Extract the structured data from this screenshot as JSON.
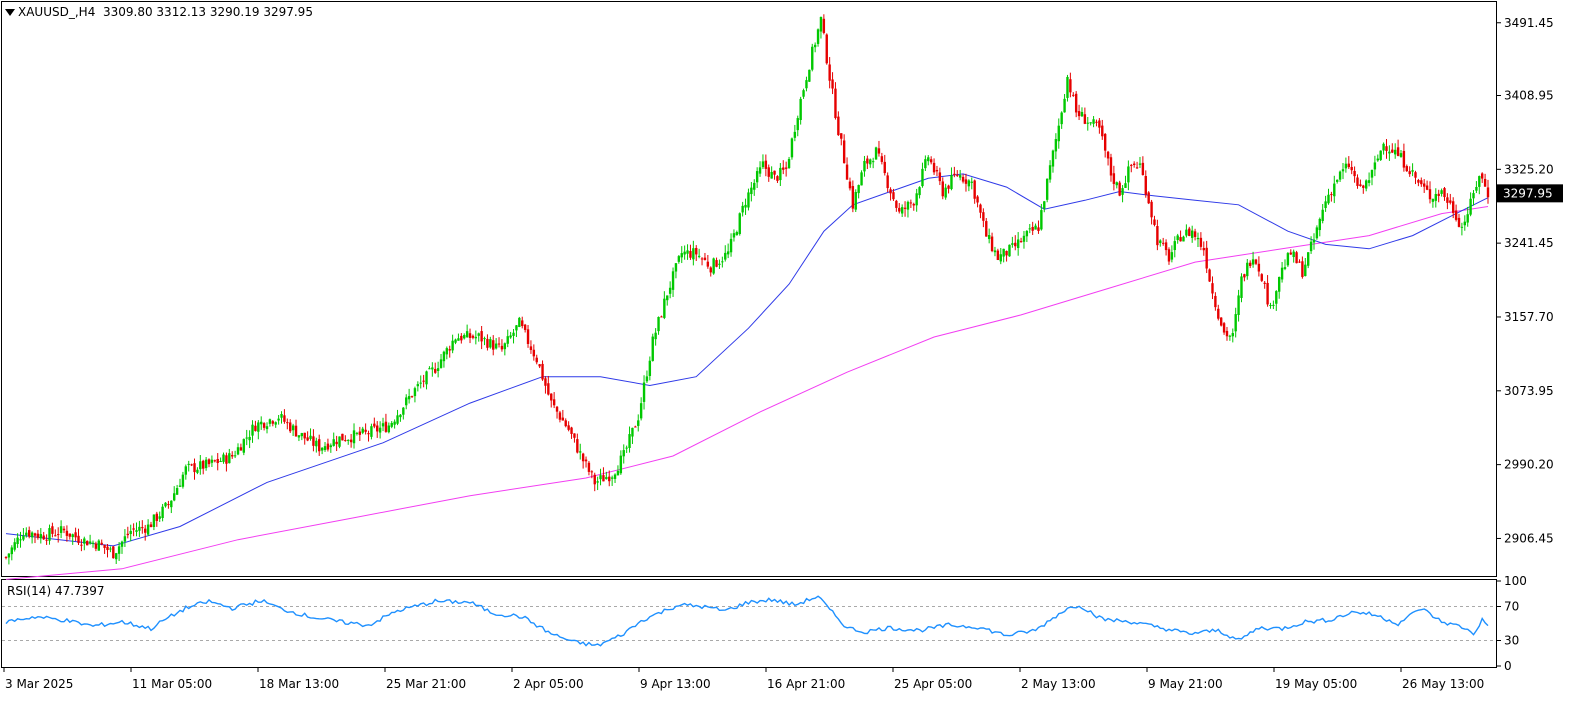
{
  "header": {
    "symbol": "XAUUSD_,H4",
    "open": "3309.80",
    "high": "3312.13",
    "low": "3290.19",
    "close": "3297.95"
  },
  "rsi_label": "RSI(14) 47.7397",
  "chart_data": [
    {
      "type": "candlestick",
      "title": "XAUUSD_,H4",
      "indicators": [
        "moving average (blue)",
        "moving average (magenta)"
      ],
      "ylim": [
        2865,
        3515
      ],
      "y_ticks": [
        "3491.45",
        "3408.95",
        "3325.20",
        "3241.45",
        "3157.70",
        "3073.95",
        "2990.20",
        "2906.45"
      ],
      "current_price": "3297.95",
      "x_tick_labels": [
        "3 Mar 2025",
        "11 Mar 05:00",
        "18 Mar 13:00",
        "25 Mar 21:00",
        "2 Apr 05:00",
        "9 Apr 13:00",
        "16 Apr 21:00",
        "25 Apr 05:00",
        "2 May 13:00",
        "9 May 21:00",
        "19 May 05:00",
        "26 May 13:00"
      ],
      "close_path": [
        {
          "i": 0,
          "v": 2885
        },
        {
          "i": 6,
          "v": 2915
        },
        {
          "i": 12,
          "v": 2910
        },
        {
          "i": 20,
          "v": 2915
        },
        {
          "i": 26,
          "v": 2905
        },
        {
          "i": 32,
          "v": 2900
        },
        {
          "i": 37,
          "v": 2890
        },
        {
          "i": 43,
          "v": 2915
        },
        {
          "i": 49,
          "v": 2920
        },
        {
          "i": 56,
          "v": 2945
        },
        {
          "i": 62,
          "v": 2985
        },
        {
          "i": 70,
          "v": 2990
        },
        {
          "i": 78,
          "v": 3000
        },
        {
          "i": 86,
          "v": 3035
        },
        {
          "i": 94,
          "v": 3045
        },
        {
          "i": 101,
          "v": 3025
        },
        {
          "i": 108,
          "v": 3010
        },
        {
          "i": 115,
          "v": 3020
        },
        {
          "i": 124,
          "v": 3025
        },
        {
          "i": 132,
          "v": 3035
        },
        {
          "i": 141,
          "v": 3075
        },
        {
          "i": 148,
          "v": 3100
        },
        {
          "i": 155,
          "v": 3135
        },
        {
          "i": 163,
          "v": 3135
        },
        {
          "i": 171,
          "v": 3120
        },
        {
          "i": 177,
          "v": 3150
        },
        {
          "i": 183,
          "v": 3110
        },
        {
          "i": 188,
          "v": 3060
        },
        {
          "i": 194,
          "v": 3030
        },
        {
          "i": 199,
          "v": 2995
        },
        {
          "i": 203,
          "v": 2970
        },
        {
          "i": 209,
          "v": 2980
        },
        {
          "i": 213,
          "v": 3000
        },
        {
          "i": 218,
          "v": 3045
        },
        {
          "i": 223,
          "v": 3130
        },
        {
          "i": 228,
          "v": 3185
        },
        {
          "i": 233,
          "v": 3230
        },
        {
          "i": 238,
          "v": 3230
        },
        {
          "i": 243,
          "v": 3215
        },
        {
          "i": 249,
          "v": 3230
        },
        {
          "i": 255,
          "v": 3290
        },
        {
          "i": 261,
          "v": 3330
        },
        {
          "i": 265,
          "v": 3315
        },
        {
          "i": 269,
          "v": 3325
        },
        {
          "i": 273,
          "v": 3390
        },
        {
          "i": 277,
          "v": 3445
        },
        {
          "i": 281,
          "v": 3495
        },
        {
          "i": 284,
          "v": 3430
        },
        {
          "i": 287,
          "v": 3370
        },
        {
          "i": 290,
          "v": 3320
        },
        {
          "i": 292,
          "v": 3285
        },
        {
          "i": 296,
          "v": 3330
        },
        {
          "i": 300,
          "v": 3345
        },
        {
          "i": 304,
          "v": 3310
        },
        {
          "i": 308,
          "v": 3275
        },
        {
          "i": 313,
          "v": 3290
        },
        {
          "i": 318,
          "v": 3340
        },
        {
          "i": 323,
          "v": 3300
        },
        {
          "i": 328,
          "v": 3320
        },
        {
          "i": 333,
          "v": 3310
        },
        {
          "i": 338,
          "v": 3250
        },
        {
          "i": 342,
          "v": 3225
        },
        {
          "i": 347,
          "v": 3235
        },
        {
          "i": 352,
          "v": 3250
        },
        {
          "i": 356,
          "v": 3260
        },
        {
          "i": 359,
          "v": 3310
        },
        {
          "i": 363,
          "v": 3375
        },
        {
          "i": 366,
          "v": 3430
        },
        {
          "i": 369,
          "v": 3390
        },
        {
          "i": 373,
          "v": 3380
        },
        {
          "i": 377,
          "v": 3370
        },
        {
          "i": 381,
          "v": 3320
        },
        {
          "i": 384,
          "v": 3300
        },
        {
          "i": 388,
          "v": 3330
        },
        {
          "i": 391,
          "v": 3330
        },
        {
          "i": 394,
          "v": 3290
        },
        {
          "i": 397,
          "v": 3245
        },
        {
          "i": 401,
          "v": 3225
        },
        {
          "i": 405,
          "v": 3250
        },
        {
          "i": 409,
          "v": 3255
        },
        {
          "i": 413,
          "v": 3235
        },
        {
          "i": 416,
          "v": 3185
        },
        {
          "i": 420,
          "v": 3140
        },
        {
          "i": 423,
          "v": 3135
        },
        {
          "i": 426,
          "v": 3200
        },
        {
          "i": 430,
          "v": 3230
        },
        {
          "i": 433,
          "v": 3205
        },
        {
          "i": 436,
          "v": 3165
        },
        {
          "i": 439,
          "v": 3205
        },
        {
          "i": 443,
          "v": 3230
        },
        {
          "i": 447,
          "v": 3210
        },
        {
          "i": 451,
          "v": 3245
        },
        {
          "i": 455,
          "v": 3290
        },
        {
          "i": 459,
          "v": 3315
        },
        {
          "i": 463,
          "v": 3330
        },
        {
          "i": 467,
          "v": 3300
        },
        {
          "i": 471,
          "v": 3320
        },
        {
          "i": 475,
          "v": 3355
        },
        {
          "i": 479,
          "v": 3345
        },
        {
          "i": 483,
          "v": 3330
        },
        {
          "i": 487,
          "v": 3310
        },
        {
          "i": 491,
          "v": 3295
        },
        {
          "i": 495,
          "v": 3300
        },
        {
          "i": 499,
          "v": 3280
        },
        {
          "i": 502,
          "v": 3260
        },
        {
          "i": 505,
          "v": 3285
        },
        {
          "i": 508,
          "v": 3320
        },
        {
          "i": 511,
          "v": 3298
        }
      ],
      "ma_fast_path": [
        {
          "i": 0,
          "v": 2912
        },
        {
          "i": 37,
          "v": 2898
        },
        {
          "i": 60,
          "v": 2920
        },
        {
          "i": 90,
          "v": 2970
        },
        {
          "i": 130,
          "v": 3015
        },
        {
          "i": 160,
          "v": 3060
        },
        {
          "i": 185,
          "v": 3090
        },
        {
          "i": 205,
          "v": 3090
        },
        {
          "i": 222,
          "v": 3080
        },
        {
          "i": 238,
          "v": 3090
        },
        {
          "i": 256,
          "v": 3145
        },
        {
          "i": 270,
          "v": 3195
        },
        {
          "i": 282,
          "v": 3255
        },
        {
          "i": 292,
          "v": 3285
        },
        {
          "i": 305,
          "v": 3300
        },
        {
          "i": 318,
          "v": 3315
        },
        {
          "i": 330,
          "v": 3320
        },
        {
          "i": 345,
          "v": 3305
        },
        {
          "i": 358,
          "v": 3280
        },
        {
          "i": 372,
          "v": 3290
        },
        {
          "i": 384,
          "v": 3300
        },
        {
          "i": 396,
          "v": 3295
        },
        {
          "i": 410,
          "v": 3290
        },
        {
          "i": 425,
          "v": 3285
        },
        {
          "i": 442,
          "v": 3255
        },
        {
          "i": 455,
          "v": 3240
        },
        {
          "i": 470,
          "v": 3235
        },
        {
          "i": 485,
          "v": 3250
        },
        {
          "i": 500,
          "v": 3275
        },
        {
          "i": 511,
          "v": 3293
        }
      ],
      "ma_slow_path": [
        {
          "i": 0,
          "v": 2860
        },
        {
          "i": 40,
          "v": 2872
        },
        {
          "i": 80,
          "v": 2905
        },
        {
          "i": 120,
          "v": 2930
        },
        {
          "i": 160,
          "v": 2955
        },
        {
          "i": 200,
          "v": 2975
        },
        {
          "i": 230,
          "v": 3000
        },
        {
          "i": 260,
          "v": 3050
        },
        {
          "i": 290,
          "v": 3095
        },
        {
          "i": 320,
          "v": 3135
        },
        {
          "i": 350,
          "v": 3160
        },
        {
          "i": 380,
          "v": 3190
        },
        {
          "i": 410,
          "v": 3220
        },
        {
          "i": 440,
          "v": 3235
        },
        {
          "i": 470,
          "v": 3250
        },
        {
          "i": 495,
          "v": 3275
        },
        {
          "i": 511,
          "v": 3283
        }
      ]
    },
    {
      "type": "line",
      "title": "RSI(14) 47.7397",
      "ylim": [
        0,
        100
      ],
      "y_ticks": [
        "100",
        "70",
        "30",
        "0"
      ],
      "levels": [
        70,
        30
      ],
      "current_value": 47.7397,
      "rsi_path": [
        {
          "i": 0,
          "v": 52
        },
        {
          "i": 10,
          "v": 58
        },
        {
          "i": 20,
          "v": 54
        },
        {
          "i": 30,
          "v": 47
        },
        {
          "i": 40,
          "v": 52
        },
        {
          "i": 50,
          "v": 44
        },
        {
          "i": 55,
          "v": 55
        },
        {
          "i": 62,
          "v": 68
        },
        {
          "i": 70,
          "v": 76
        },
        {
          "i": 78,
          "v": 68
        },
        {
          "i": 88,
          "v": 77
        },
        {
          "i": 95,
          "v": 67
        },
        {
          "i": 105,
          "v": 58
        },
        {
          "i": 115,
          "v": 52
        },
        {
          "i": 125,
          "v": 48
        },
        {
          "i": 135,
          "v": 65
        },
        {
          "i": 148,
          "v": 76
        },
        {
          "i": 160,
          "v": 75
        },
        {
          "i": 168,
          "v": 62
        },
        {
          "i": 178,
          "v": 58
        },
        {
          "i": 188,
          "v": 38
        },
        {
          "i": 196,
          "v": 28
        },
        {
          "i": 204,
          "v": 24
        },
        {
          "i": 212,
          "v": 36
        },
        {
          "i": 220,
          "v": 55
        },
        {
          "i": 232,
          "v": 72
        },
        {
          "i": 240,
          "v": 70
        },
        {
          "i": 248,
          "v": 65
        },
        {
          "i": 256,
          "v": 75
        },
        {
          "i": 264,
          "v": 78
        },
        {
          "i": 272,
          "v": 72
        },
        {
          "i": 280,
          "v": 82
        },
        {
          "i": 284,
          "v": 66
        },
        {
          "i": 290,
          "v": 45
        },
        {
          "i": 296,
          "v": 40
        },
        {
          "i": 304,
          "v": 45
        },
        {
          "i": 315,
          "v": 42
        },
        {
          "i": 325,
          "v": 48
        },
        {
          "i": 335,
          "v": 46
        },
        {
          "i": 345,
          "v": 36
        },
        {
          "i": 355,
          "v": 42
        },
        {
          "i": 365,
          "v": 66
        },
        {
          "i": 370,
          "v": 72
        },
        {
          "i": 378,
          "v": 55
        },
        {
          "i": 388,
          "v": 52
        },
        {
          "i": 398,
          "v": 45
        },
        {
          "i": 408,
          "v": 38
        },
        {
          "i": 418,
          "v": 42
        },
        {
          "i": 425,
          "v": 30
        },
        {
          "i": 432,
          "v": 45
        },
        {
          "i": 440,
          "v": 44
        },
        {
          "i": 448,
          "v": 52
        },
        {
          "i": 456,
          "v": 54
        },
        {
          "i": 465,
          "v": 64
        },
        {
          "i": 472,
          "v": 60
        },
        {
          "i": 480,
          "v": 50
        },
        {
          "i": 488,
          "v": 68
        },
        {
          "i": 495,
          "v": 52
        },
        {
          "i": 502,
          "v": 46
        },
        {
          "i": 506,
          "v": 38
        },
        {
          "i": 509,
          "v": 54
        },
        {
          "i": 511,
          "v": 47.7
        }
      ]
    }
  ],
  "colors": {
    "bull": "#00c800",
    "bear": "#e60000",
    "ma_fast": "#2f3ae8",
    "ma_slow": "#f23ef2",
    "rsi": "#1e90ff",
    "frame": "#000000",
    "grid": "#a9a9a9"
  }
}
